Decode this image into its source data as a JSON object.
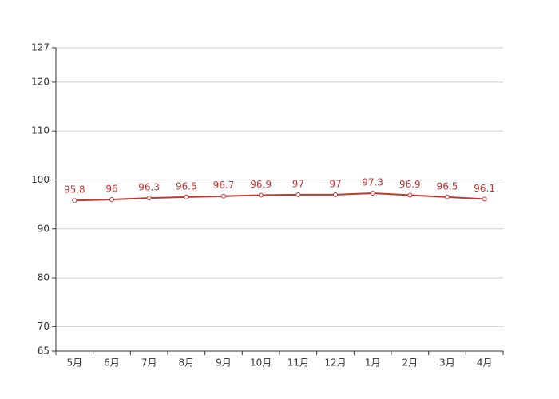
{
  "chart_data": {
    "type": "line",
    "categories": [
      "5月",
      "6月",
      "7月",
      "8月",
      "9月",
      "10月",
      "11月",
      "12月",
      "1月",
      "2月",
      "3月",
      "4月"
    ],
    "values": [
      95.8,
      96,
      96.3,
      96.5,
      96.7,
      96.9,
      97,
      97,
      97.3,
      96.9,
      96.5,
      96.1
    ],
    "color": "#c23531",
    "ylim": [
      65,
      127
    ],
    "yticks": [
      65,
      70,
      80,
      90,
      100,
      110,
      120,
      127
    ],
    "grid": true
  }
}
